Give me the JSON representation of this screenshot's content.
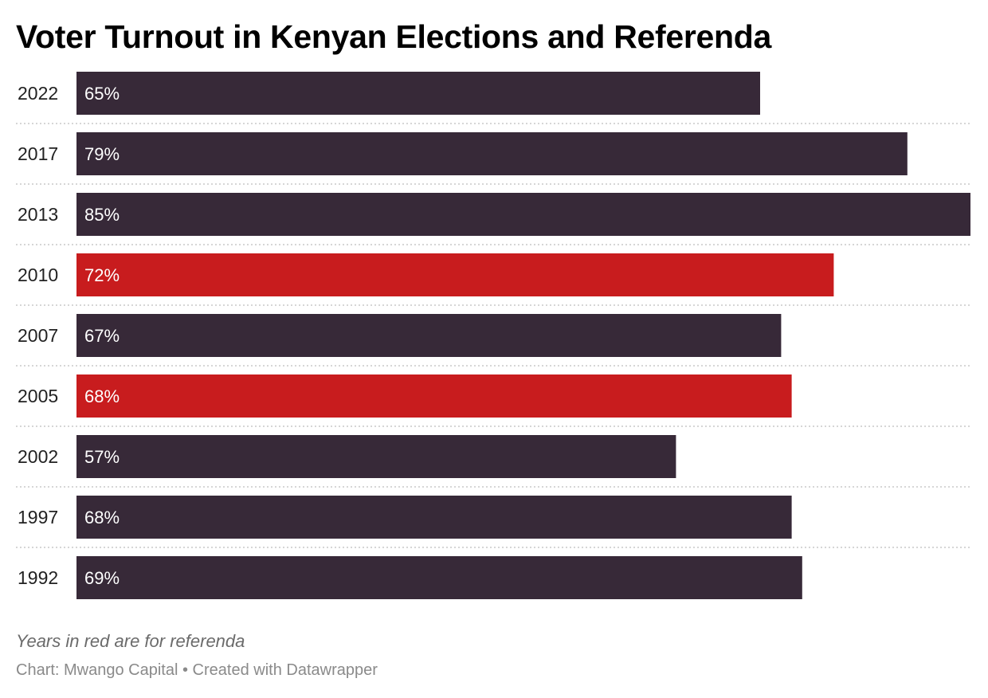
{
  "chart_data": {
    "type": "bar",
    "orientation": "horizontal",
    "title": "Voter Turnout in Kenyan Elections and Referenda",
    "categories": [
      "2022",
      "2017",
      "2013",
      "2010",
      "2007",
      "2005",
      "2002",
      "1997",
      "1992"
    ],
    "values": [
      65,
      79,
      85,
      72,
      67,
      68,
      57,
      68,
      69
    ],
    "value_labels": [
      "65%",
      "79%",
      "85%",
      "72%",
      "67%",
      "68%",
      "57%",
      "68%",
      "69%"
    ],
    "referenda": [
      "2010",
      "2005"
    ],
    "xlim": [
      0,
      85
    ],
    "grid": false,
    "unit": "%"
  },
  "colors": {
    "election": "#372938",
    "referendum": "#c81c1e",
    "label": "#ffffff",
    "separator": "#c9c9c9"
  },
  "note": "Years in red are for referenda",
  "source": "Chart: Mwango Capital • Created with Datawrapper"
}
